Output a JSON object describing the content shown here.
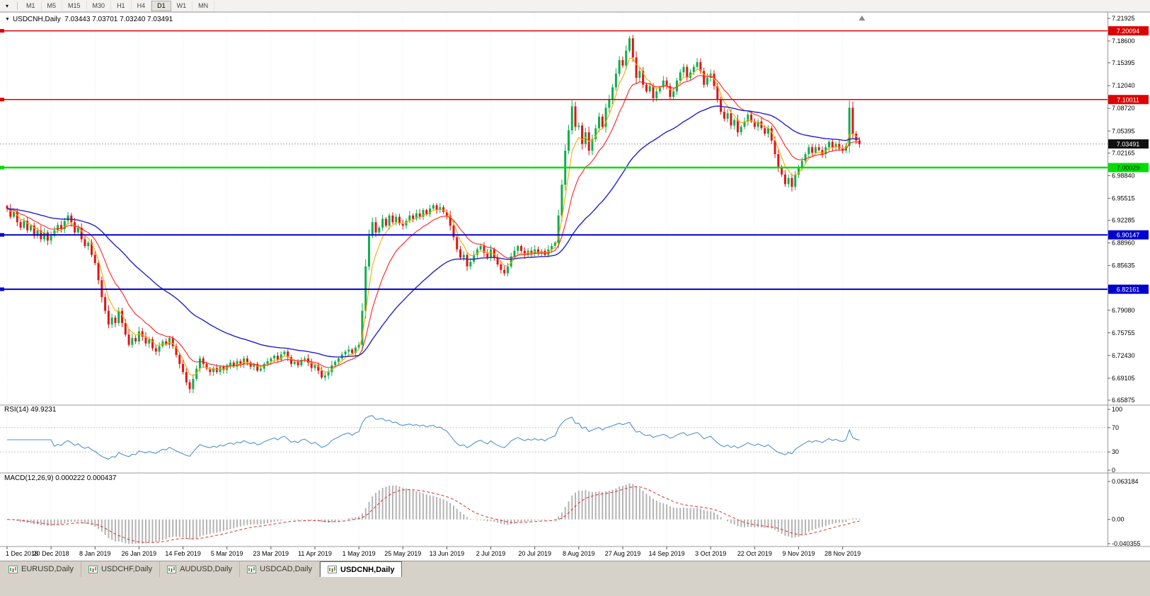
{
  "toolbar": {
    "menu_dropdown_icon": "triangle-down",
    "timeframes": [
      "M1",
      "M5",
      "M15",
      "M30",
      "H1",
      "H4",
      "D1",
      "W1",
      "MN"
    ],
    "active_timeframe": "D1"
  },
  "colors": {
    "candle_up": "#0fae4f",
    "candle_down": "#e01414",
    "ma_fast": "#ffa800",
    "ma_mid": "#ff2121",
    "ma_slow": "#2121cc",
    "rsi_line": "#4f93cf",
    "rsi_level": "#c8c8c8",
    "macd_hist": "#b4b4b4",
    "macd_signal": "#e03030",
    "grid": "#ebebeb",
    "separator": "#9a9a9a",
    "current_line": "#aaaaaa"
  },
  "chart_data": {
    "type": "candlestick",
    "symbol": "USDCNH",
    "timeframe": "Daily",
    "title_line": "USDCNH,Daily  7.03443 7.03701 7.03240 7.03491",
    "quote": {
      "open": "7.03443",
      "high": "7.03701",
      "low": "7.03240",
      "close": "7.03491"
    },
    "y_axis_labels": [
      "7.21925",
      "7.18600",
      "7.15395",
      "7.12040",
      "7.08720",
      "7.05395",
      "7.02165",
      "6.98840",
      "6.95515",
      "6.92285",
      "6.88960",
      "6.85635",
      "6.82405",
      "6.79080",
      "6.75755",
      "6.72430",
      "6.69105",
      "6.65875"
    ],
    "x_labels": [
      "1 Dec 2018",
      "20 Dec 2018",
      "8 Jan 2019",
      "26 Jan 2019",
      "14 Feb 2019",
      "5 Mar 2019",
      "23 Mar 2019",
      "11 Apr 2019",
      "1 May 2019",
      "25 May 2019",
      "13 Jun 2019",
      "2 Jul 2019",
      "20 Jul 2019",
      "8 Aug 2019",
      "27 Aug 2019",
      "14 Sep 2019",
      "3 Oct 2019",
      "22 Oct 2019",
      "9 Nov 2019",
      "28 Nov 2019"
    ],
    "closes": [
      6.94,
      6.928,
      6.935,
      6.92,
      6.912,
      6.922,
      6.908,
      6.915,
      6.9,
      6.908,
      6.895,
      6.905,
      6.893,
      6.9,
      6.908,
      6.916,
      6.91,
      6.922,
      6.93,
      6.92,
      6.905,
      6.912,
      6.895,
      6.885,
      6.89,
      6.872,
      6.86,
      6.835,
      6.81,
      6.79,
      6.77,
      6.78,
      6.772,
      6.79,
      6.772,
      6.755,
      6.74,
      6.75,
      6.745,
      6.76,
      6.752,
      6.742,
      6.748,
      6.735,
      6.73,
      6.738,
      6.745,
      6.74,
      6.75,
      6.738,
      6.725,
      6.712,
      6.7,
      6.685,
      6.675,
      6.69,
      6.705,
      6.72,
      6.712,
      6.705,
      6.7,
      6.706,
      6.7,
      6.708,
      6.703,
      6.71,
      6.714,
      6.708,
      6.716,
      6.712,
      6.72,
      6.714,
      6.708,
      6.712,
      6.702,
      6.705,
      6.712,
      6.716,
      6.72,
      6.724,
      6.718,
      6.726,
      6.73,
      6.722,
      6.712,
      6.715,
      6.71,
      6.718,
      6.72,
      6.714,
      6.706,
      6.71,
      6.702,
      6.692,
      6.695,
      6.7,
      6.71,
      6.715,
      6.72,
      6.726,
      6.73,
      6.733,
      6.728,
      6.736,
      6.74,
      6.79,
      6.855,
      6.9,
      6.92,
      6.905,
      6.912,
      6.925,
      6.915,
      6.93,
      6.92,
      6.928,
      6.918,
      6.915,
      6.922,
      6.93,
      6.925,
      6.933,
      6.928,
      6.938,
      6.932,
      6.94,
      6.945,
      6.938,
      6.942,
      6.935,
      6.93,
      6.915,
      6.898,
      6.88,
      6.868,
      6.872,
      6.855,
      6.862,
      6.872,
      6.88,
      6.885,
      6.875,
      6.868,
      6.88,
      6.868,
      6.858,
      6.85,
      6.845,
      6.855,
      6.87,
      6.878,
      6.885,
      6.878,
      6.872,
      6.878,
      6.874,
      6.88,
      6.874,
      6.878,
      6.872,
      6.88,
      6.885,
      6.89,
      6.93,
      6.975,
      7.025,
      7.055,
      7.09,
      7.06,
      7.062,
      7.035,
      7.052,
      7.025,
      7.042,
      7.058,
      7.075,
      7.06,
      7.088,
      7.1,
      7.118,
      7.138,
      7.158,
      7.15,
      7.172,
      7.19,
      7.162,
      7.132,
      7.142,
      7.122,
      7.112,
      7.12,
      7.102,
      7.112,
      7.118,
      7.128,
      7.12,
      7.104,
      7.112,
      7.128,
      7.14,
      7.148,
      7.132,
      7.14,
      7.148,
      7.155,
      7.142,
      7.122,
      7.132,
      7.138,
      7.12,
      7.1,
      7.082,
      7.072,
      7.08,
      7.062,
      7.07,
      7.052,
      7.06,
      7.068,
      7.078,
      7.068,
      7.06,
      7.068,
      7.058,
      7.05,
      7.058,
      7.04,
      7.02,
      7.0,
      6.99,
      6.976,
      6.985,
      6.972,
      6.99,
      7.0,
      7.01,
      7.02,
      7.03,
      7.022,
      7.03,
      7.026,
      7.02,
      7.03,
      7.038,
      7.03,
      7.035,
      7.028,
      7.025,
      7.032,
      7.088,
      7.05,
      7.04,
      7.035
    ],
    "hlines": [
      {
        "label": "7.20094",
        "price": 7.20094,
        "color": "#dd0000",
        "text_color": "#ffffff",
        "width": 1.5
      },
      {
        "label": "7.10011",
        "price": 7.10011,
        "color": "#dd0000",
        "text_color": "#ffffff",
        "width": 1.5
      },
      {
        "label": "7.00029",
        "price": 7.00029,
        "color": "#00dd00",
        "text_color": "#003300",
        "width": 2.5
      },
      {
        "label": "6.90147",
        "price": 6.90147,
        "color": "#0000cc",
        "text_color": "#ffffff",
        "width": 2
      },
      {
        "label": "6.82161",
        "price": 6.82161,
        "color": "#0000cc",
        "text_color": "#ffffff",
        "width": 2
      }
    ],
    "current_price": {
      "label": "7.03491",
      "price": 7.03491,
      "bg": "#111111",
      "text_color": "#ffffff"
    },
    "moving_averages": [
      {
        "type": "ema",
        "period": 5,
        "color": "#ffa800",
        "width": 1.1
      },
      {
        "type": "ema",
        "period": 13,
        "color": "#ff2121",
        "width": 1.1
      },
      {
        "type": "ema",
        "period": 45,
        "color": "#2121cc",
        "width": 1.4
      }
    ],
    "indicators": [
      {
        "name": "RSI",
        "params": "14",
        "value": "49.9231",
        "label": "RSI(14) 49.9231",
        "axis_labels": [
          "100",
          "70",
          "30",
          "0"
        ],
        "levels": [
          70,
          30
        ],
        "scale": [
          100,
          0
        ]
      },
      {
        "name": "MACD",
        "params": "12,26,9",
        "values": [
          "0.000222",
          "0.000437"
        ],
        "label": "MACD(12,26,9) 0.000222 0.000437",
        "axis_labels": [
          "0.063184",
          "0.00",
          "-0.040355"
        ],
        "scale": [
          0.063184,
          -0.040355
        ]
      }
    ]
  },
  "tabs": [
    {
      "label": "EURUSD,Daily",
      "active": false
    },
    {
      "label": "USDCHF,Daily",
      "active": false
    },
    {
      "label": "AUDUSD,Daily",
      "active": false
    },
    {
      "label": "USDCAD,Daily",
      "active": false
    },
    {
      "label": "USDCNH,Daily",
      "active": true
    }
  ]
}
